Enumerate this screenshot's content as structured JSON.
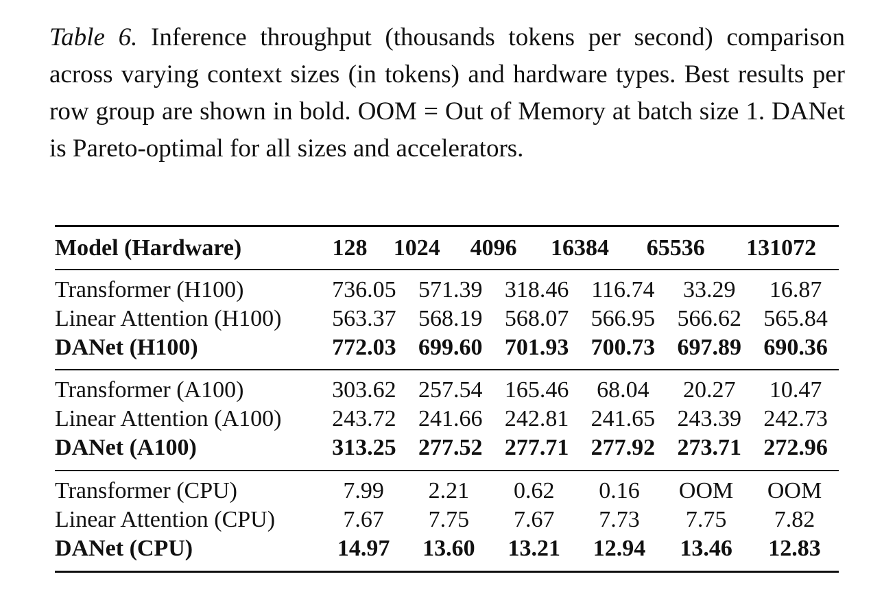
{
  "caption": {
    "label": "Table 6.",
    "text": " Inference throughput (thousands tokens per second) comparison across varying context sizes (in tokens) and hardware types. Best results per row group are shown in bold. OOM = Out of Memory at batch size 1. DANet is Pareto-optimal for all sizes and accelerators."
  },
  "table": {
    "header": [
      "Model (Hardware)",
      "128",
      "1024",
      "4096",
      "16384",
      "65536",
      "131072"
    ],
    "groups": [
      {
        "rows": [
          {
            "model": "Transformer (H100)",
            "values": [
              "736.05",
              "571.39",
              "318.46",
              "116.74",
              "33.29",
              "16.87"
            ],
            "bold": false
          },
          {
            "model": "Linear Attention (H100)",
            "values": [
              "563.37",
              "568.19",
              "568.07",
              "566.95",
              "566.62",
              "565.84"
            ],
            "bold": false
          },
          {
            "model": "DANet (H100)",
            "values": [
              "772.03",
              "699.60",
              "701.93",
              "700.73",
              "697.89",
              "690.36"
            ],
            "bold": true
          }
        ]
      },
      {
        "rows": [
          {
            "model": "Transformer (A100)",
            "values": [
              "303.62",
              "257.54",
              "165.46",
              "68.04",
              "20.27",
              "10.47"
            ],
            "bold": false
          },
          {
            "model": "Linear Attention (A100)",
            "values": [
              "243.72",
              "241.66",
              "242.81",
              "241.65",
              "243.39",
              "242.73"
            ],
            "bold": false
          },
          {
            "model": "DANet (A100)",
            "values": [
              "313.25",
              "277.52",
              "277.71",
              "277.92",
              "273.71",
              "272.96"
            ],
            "bold": true
          }
        ]
      },
      {
        "rows": [
          {
            "model": "Transformer (CPU)",
            "values": [
              "7.99",
              "2.21",
              "0.62",
              "0.16",
              "OOM",
              "OOM"
            ],
            "bold": false
          },
          {
            "model": "Linear Attention (CPU)",
            "values": [
              "7.67",
              "7.75",
              "7.67",
              "7.73",
              "7.75",
              "7.82"
            ],
            "bold": false
          },
          {
            "model": "DANet (CPU)",
            "values": [
              "14.97",
              "13.60",
              "13.21",
              "12.94",
              "13.46",
              "12.83"
            ],
            "bold": true
          }
        ]
      }
    ]
  }
}
